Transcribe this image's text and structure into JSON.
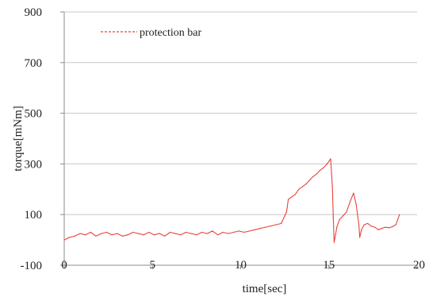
{
  "chart_data": {
    "type": "line",
    "xlabel": "time[sec]",
    "ylabel": "torque[mNm]",
    "xlim": [
      0,
      20
    ],
    "ylim": [
      -100,
      900
    ],
    "xticks": [
      0,
      5,
      10,
      15,
      20
    ],
    "xtick_labels": [
      "0",
      "5",
      "10",
      "15",
      "20"
    ],
    "yticks": [
      -100,
      100,
      300,
      500,
      700,
      900
    ],
    "ytick_labels": [
      "-100",
      "100",
      "300",
      "500",
      "700",
      "900"
    ],
    "grid": "horizontal",
    "legend_position": "top-left",
    "series": [
      {
        "name": "protection bar",
        "color": "#e8433d",
        "x": [
          0.0,
          0.3,
          0.6,
          0.9,
          1.2,
          1.5,
          1.8,
          2.1,
          2.4,
          2.7,
          3.0,
          3.3,
          3.6,
          3.9,
          4.2,
          4.5,
          4.8,
          5.1,
          5.4,
          5.7,
          6.0,
          6.3,
          6.6,
          6.9,
          7.2,
          7.5,
          7.8,
          8.1,
          8.4,
          8.7,
          9.0,
          9.3,
          9.6,
          9.9,
          10.2,
          10.5,
          10.8,
          11.1,
          11.4,
          11.7,
          12.0,
          12.3,
          12.6,
          12.7,
          12.9,
          13.1,
          13.3,
          13.5,
          13.7,
          13.9,
          14.1,
          14.3,
          14.5,
          14.7,
          14.9,
          15.1,
          15.2,
          15.25,
          15.3,
          15.45,
          15.6,
          15.8,
          16.0,
          16.2,
          16.4,
          16.55,
          16.7,
          16.75,
          16.85,
          17.0,
          17.2,
          17.4,
          17.6,
          17.8,
          18.0,
          18.2,
          18.4,
          18.6,
          18.8,
          19.0
        ],
        "y": [
          0,
          10,
          15,
          25,
          20,
          30,
          15,
          25,
          30,
          20,
          25,
          15,
          20,
          30,
          25,
          20,
          30,
          20,
          25,
          15,
          30,
          25,
          20,
          30,
          25,
          20,
          30,
          25,
          35,
          20,
          30,
          25,
          30,
          35,
          30,
          35,
          40,
          45,
          50,
          55,
          60,
          65,
          110,
          160,
          170,
          180,
          200,
          210,
          220,
          235,
          250,
          260,
          275,
          285,
          300,
          320,
          210,
          90,
          -10,
          50,
          80,
          95,
          110,
          150,
          185,
          140,
          60,
          10,
          40,
          60,
          65,
          55,
          50,
          40,
          45,
          50,
          48,
          52,
          60,
          100
        ]
      }
    ]
  }
}
